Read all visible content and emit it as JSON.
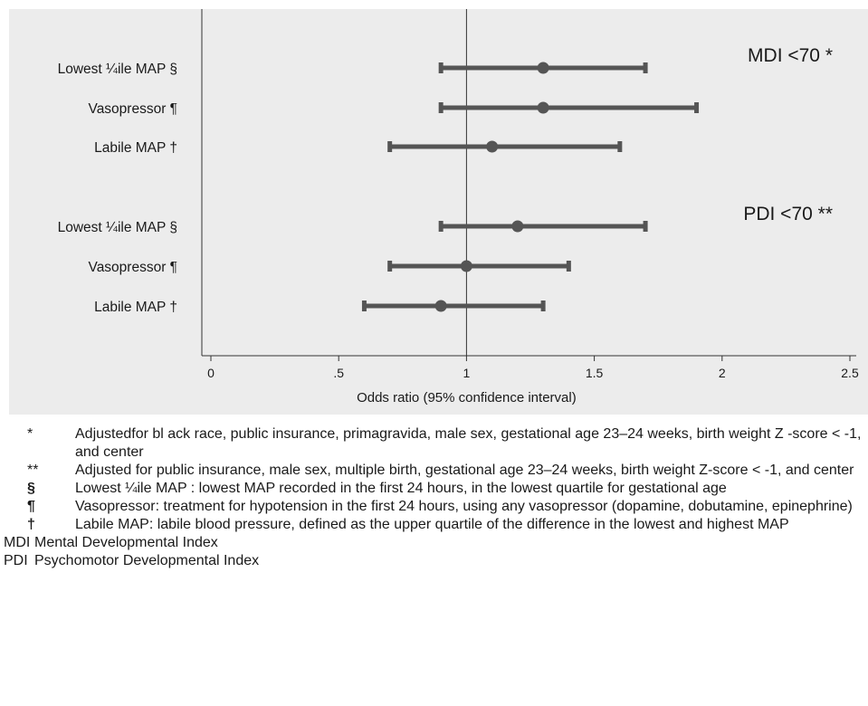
{
  "colors": {
    "panel_bg": "#ececec",
    "plot_bg": "#ececec",
    "marker": "#555555",
    "axis": "#333333"
  },
  "chart_data": {
    "type": "forest",
    "xlabel": "Odds ratio (95% confidence interval)",
    "xlim": [
      0,
      2.5
    ],
    "xticks": [
      0,
      0.5,
      1,
      1.5,
      2,
      2.5
    ],
    "xtick_labels": [
      "0",
      ".5",
      "1",
      "1.5",
      "2",
      "2.5"
    ],
    "reference_line": 1,
    "grid": false,
    "groups": [
      {
        "label": "MDI <70 *",
        "rows": [
          {
            "label": "Lowest ¼ile MAP §",
            "or": 1.3,
            "lo": 0.9,
            "hi": 1.7
          },
          {
            "label": "Vasopressor ¶",
            "or": 1.3,
            "lo": 0.9,
            "hi": 1.9
          },
          {
            "label": "Labile MAP †",
            "or": 1.1,
            "lo": 0.7,
            "hi": 1.6
          }
        ]
      },
      {
        "label": "PDI <70 **",
        "rows": [
          {
            "label": "Lowest ¼ile MAP §",
            "or": 1.2,
            "lo": 0.9,
            "hi": 1.7
          },
          {
            "label": "Vasopressor ¶",
            "or": 1.0,
            "lo": 0.7,
            "hi": 1.4
          },
          {
            "label": "Labile MAP †",
            "or": 0.9,
            "lo": 0.6,
            "hi": 1.3
          }
        ]
      }
    ]
  },
  "footnotes": [
    {
      "symbol": "*",
      "text": "Adjustedfor bl ack race, public insurance, primagravida, male sex, gestational age 23–24 weeks, birth weight Z -score < -1, and center"
    },
    {
      "symbol": "**",
      "text": "Adjusted for  public insurance, male sex, multiple birth, gestational age 23–24 weeks, birth weight Z-score < -1, and center"
    },
    {
      "symbol": "§",
      "text": "Lowest ¼ile MAP : lowest MAP recorded in the first 24 hours, in the lowest quartile for gestational age"
    },
    {
      "symbol": "¶",
      "text": "Vasopressor: treatment for hypotension in the first 24 hours, using any vasopressor (dopamine, dobutamine, epinephrine)"
    },
    {
      "symbol": "†",
      "text": "Labile MAP: labile blood pressure, defined as the upper quartile of the difference in the lowest and highest MAP"
    }
  ],
  "abbreviations": [
    {
      "symbol": "MDI",
      "text": "Mental Developmental  Index"
    },
    {
      "symbol": "PDI",
      "text": "Psychomotor  Developmental  Index"
    }
  ]
}
